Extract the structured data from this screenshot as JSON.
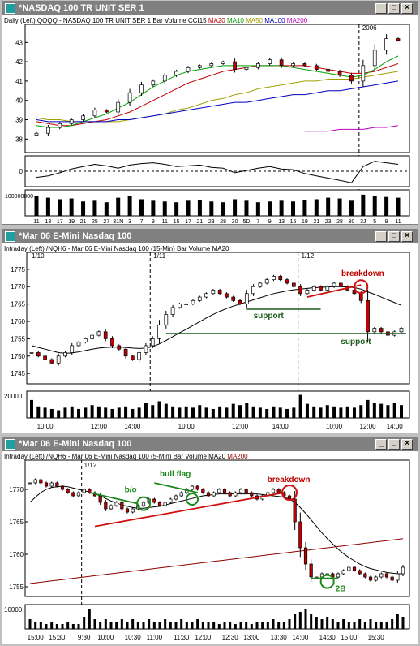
{
  "windows": [
    {
      "title": "*NASDAQ 100 TR UNIT SER 1",
      "header": {
        "interval": "Daily",
        "scale": "(Left)",
        "symbol": "QQQQ - NASDAQ 100 TR UNIT SER 1",
        "mode": "Bar",
        "studies": [
          {
            "label": "Volume",
            "color": "#000000"
          },
          {
            "label": "CCI15",
            "color": "#000000"
          },
          {
            "label": "MA20",
            "color": "#c00000"
          },
          {
            "label": "MA10",
            "color": "#00a000"
          },
          {
            "label": "MA50",
            "color": "#a0a000"
          },
          {
            "label": "MA100",
            "color": "#0000c0"
          },
          {
            "label": "MA200",
            "color": "#c000c0"
          }
        ]
      },
      "year_marker": "2006",
      "y_ticks": [
        "43",
        "42",
        "41",
        "40",
        "39",
        "38"
      ],
      "cci_tick": "0",
      "volume_tick": "100000000",
      "x_ticks": [
        "11",
        "13",
        "17",
        "19",
        "21",
        "25",
        "27",
        "31N",
        "3",
        "7",
        "9",
        "11",
        "15",
        "17",
        "21",
        "23",
        "28",
        "30",
        "5D",
        "7",
        "9",
        "13",
        "15",
        "19",
        "21",
        "23",
        "28",
        "30",
        "3J",
        "5",
        "9",
        "11"
      ]
    },
    {
      "title": "*Mar 06  E-Mini Nasdaq 100",
      "header": {
        "interval": "Intraday",
        "scale": "(Left)",
        "symbol": "/NQH6 - Mar 06  E-Mini Nasdaq 100  (15-Min)",
        "mode": "Bar",
        "studies": [
          {
            "label": "Volume",
            "color": "#000000"
          },
          {
            "label": "MA20",
            "color": "#000000"
          }
        ]
      },
      "day_markers": [
        "1/10",
        "1/11",
        "1/12"
      ],
      "y_ticks": [
        "1775",
        "1770",
        "1765",
        "1760",
        "1755",
        "1750",
        "1745"
      ],
      "volume_tick": "20000",
      "x_ticks": [
        "10:00",
        "12:00",
        "14:00",
        "10:00",
        "12:00",
        "14:00",
        "10:00",
        "12:00",
        "14:00"
      ],
      "annotations": {
        "support_1": "support",
        "support_2": "support",
        "breakdown": "breakdown"
      }
    },
    {
      "title": "*Mar 06  E-Mini Nasdaq 100",
      "header": {
        "interval": "Intraday",
        "scale": "(Left)",
        "symbol": "/NQH6 - Mar 06  E-Mini Nasdaq 100  (5-Min)",
        "mode": "Bar",
        "studies": [
          {
            "label": "Volume",
            "color": "#000000"
          },
          {
            "label": "MA20",
            "color": "#000000"
          },
          {
            "label": "MA200",
            "color": "#8b0000"
          }
        ]
      },
      "day_marker": "1/12",
      "y_ticks": [
        "1770",
        "1765",
        "1760",
        "1755"
      ],
      "volume_tick": "10000",
      "x_ticks": [
        "15:00",
        "15:30",
        "9:30",
        "10:00",
        "10:30",
        "11:00",
        "11:30",
        "12:00",
        "12:30",
        "13:00",
        "13:30",
        "14:00",
        "14:30",
        "15:00",
        "15:30"
      ],
      "annotations": {
        "bo": "b/o",
        "bull_flag": "bull flag",
        "breakdown": "breakdown",
        "two_b": "2B"
      }
    }
  ],
  "chart_data": [
    {
      "type": "candlestick",
      "title": "*NASDAQ 100 TR UNIT SER 1",
      "ylim": [
        37.3,
        43.6
      ],
      "x": [
        "11",
        "13",
        "17",
        "19",
        "21",
        "25",
        "27",
        "31N",
        "3",
        "7",
        "9",
        "11",
        "15",
        "17",
        "21",
        "23",
        "28",
        "30",
        "5D",
        "7",
        "9",
        "13",
        "15",
        "19",
        "21",
        "23",
        "28",
        "30",
        "3J",
        "5",
        "9",
        "11"
      ],
      "close": [
        38.3,
        38.6,
        38.8,
        39.0,
        39.2,
        39.5,
        39.4,
        39.9,
        40.4,
        40.8,
        41.0,
        41.3,
        41.5,
        41.7,
        41.8,
        41.9,
        42.0,
        41.6,
        41.7,
        41.9,
        42.1,
        41.8,
        41.9,
        41.8,
        41.6,
        41.5,
        41.3,
        41.0,
        41.8,
        42.6,
        43.2,
        43.1
      ],
      "series": [
        {
          "name": "MA20",
          "color": "#c00000",
          "values": [
            38.9,
            38.8,
            38.7,
            38.7,
            38.8,
            38.9,
            39.0,
            39.2,
            39.4,
            39.7,
            40.0,
            40.3,
            40.6,
            40.9,
            41.1,
            41.3,
            41.5,
            41.6,
            41.7,
            41.8,
            41.8,
            41.8,
            41.8,
            41.8,
            41.7,
            41.6,
            41.5,
            41.4,
            41.4,
            41.5,
            41.7,
            41.9
          ]
        },
        {
          "name": "MA10",
          "color": "#00a000",
          "values": [
            38.7,
            38.6,
            38.6,
            38.7,
            38.9,
            39.1,
            39.3,
            39.6,
            39.9,
            40.3,
            40.7,
            41.0,
            41.3,
            41.5,
            41.6,
            41.7,
            41.8,
            41.8,
            41.8,
            41.8,
            41.8,
            41.8,
            41.7,
            41.6,
            41.5,
            41.4,
            41.3,
            41.2,
            41.3,
            41.6,
            42.0,
            42.3
          ]
        },
        {
          "name": "MA50",
          "color": "#a0a000",
          "values": [
            39.1,
            39.0,
            39.0,
            38.9,
            38.9,
            38.9,
            38.9,
            38.9,
            39.0,
            39.1,
            39.2,
            39.3,
            39.5,
            39.6,
            39.8,
            40.0,
            40.1,
            40.3,
            40.4,
            40.6,
            40.7,
            40.8,
            40.9,
            41.0,
            41.0,
            41.1,
            41.1,
            41.1,
            41.2,
            41.3,
            41.4,
            41.5
          ]
        },
        {
          "name": "MA100",
          "color": "#0000c0",
          "values": [
            39.0,
            38.9,
            38.9,
            38.9,
            38.9,
            38.9,
            38.9,
            39.0,
            39.0,
            39.1,
            39.2,
            39.3,
            39.4,
            39.5,
            39.6,
            39.7,
            39.8,
            39.9,
            39.9,
            40.0,
            40.1,
            40.2,
            40.3,
            40.3,
            40.4,
            40.5,
            40.5,
            40.6,
            40.7,
            40.8,
            40.9,
            41.0
          ]
        },
        {
          "name": "MA200",
          "color": "#c000c0",
          "values": [
            null,
            null,
            null,
            null,
            null,
            null,
            null,
            null,
            null,
            null,
            null,
            null,
            null,
            null,
            null,
            null,
            null,
            null,
            null,
            null,
            null,
            null,
            null,
            38.4,
            38.4,
            38.4,
            38.5,
            38.5,
            38.5,
            38.6,
            38.6,
            38.7
          ]
        }
      ],
      "cci": [
        -80,
        -60,
        -20,
        30,
        60,
        90,
        70,
        40,
        80,
        100,
        110,
        90,
        60,
        70,
        80,
        50,
        40,
        -20,
        10,
        40,
        60,
        30,
        20,
        -30,
        -60,
        -90,
        -120,
        -150,
        60,
        130,
        110,
        90
      ],
      "volume": [
        130,
        120,
        110,
        115,
        95,
        100,
        90,
        120,
        130,
        110,
        100,
        95,
        90,
        100,
        105,
        95,
        90,
        110,
        100,
        90,
        95,
        100,
        95,
        105,
        110,
        120,
        115,
        100,
        140,
        130,
        125,
        120
      ]
    },
    {
      "type": "candlestick",
      "title": "/NQH6 - Mar 06  E-Mini Nasdaq 100  (15-Min)",
      "ylim": [
        1742,
        1778
      ],
      "x_labels": [
        "10:00",
        "12:00",
        "14:00",
        "10:00",
        "12:00",
        "14:00",
        "10:00",
        "12:00",
        "14:00"
      ],
      "close": [
        1751,
        1750,
        1749,
        1748,
        1750,
        1751,
        1753,
        1754,
        1755,
        1756,
        1757,
        1755,
        1753,
        1752,
        1750,
        1749,
        1751,
        1753,
        1755,
        1759,
        1762,
        1764,
        1765,
        1765,
        1766,
        1767,
        1768,
        1769,
        1768,
        1767,
        1766,
        1765,
        1768,
        1770,
        1771,
        1772,
        1773,
        1772,
        1771,
        1770,
        1768,
        1769,
        1770,
        1769,
        1770,
        1771,
        1770,
        1769,
        1768,
        1766,
        1757,
        1758,
        1757,
        1756,
        1757,
        1758
      ],
      "series": [
        {
          "name": "MA20",
          "color": "#000000",
          "values": [
            1753,
            1752.5,
            1752,
            1751.5,
            1751,
            1750.8,
            1750.9,
            1751.2,
            1751.6,
            1752,
            1752.3,
            1752.5,
            1752.6,
            1752.6,
            1752.5,
            1752.3,
            1752.2,
            1752.3,
            1752.7,
            1753.5,
            1754.5,
            1755.6,
            1756.7,
            1757.7,
            1758.8,
            1759.9,
            1761,
            1762,
            1762.9,
            1763.7,
            1764.4,
            1765,
            1765.6,
            1766.2,
            1766.8,
            1767.4,
            1768,
            1768.4,
            1768.8,
            1769.1,
            1769.3,
            1769.5,
            1769.7,
            1769.8,
            1769.9,
            1770,
            1770,
            1769.9,
            1769.7,
            1769.3,
            1768.5,
            1767.8,
            1767,
            1766.2,
            1765.4,
            1764.6
          ]
        }
      ],
      "volume": [
        14,
        9,
        8,
        7,
        6,
        8,
        9,
        7,
        8,
        10,
        9,
        8,
        7,
        8,
        9,
        7,
        8,
        12,
        10,
        13,
        11,
        9,
        8,
        9,
        8,
        10,
        8,
        7,
        9,
        8,
        11,
        10,
        12,
        9,
        8,
        7,
        9,
        8,
        7,
        8,
        18,
        11,
        9,
        8,
        10,
        9,
        8,
        9,
        8,
        10,
        14,
        12,
        11,
        10,
        12,
        10
      ]
    },
    {
      "type": "candlestick",
      "title": "/NQH6 - Mar 06  E-Mini Nasdaq 100  (5-Min)",
      "ylim": [
        1753.5,
        1773.5
      ],
      "x_labels": [
        "15:00",
        "15:30",
        "9:30",
        "10:00",
        "10:30",
        "11:00",
        "11:30",
        "12:00",
        "12:30",
        "13:00",
        "13:30",
        "14:00",
        "14:30",
        "15:00",
        "15:30"
      ],
      "close": [
        1771,
        1771.5,
        1771,
        1770.5,
        1771,
        1770.5,
        1770,
        1769.5,
        1769,
        1769.5,
        1770,
        1769.5,
        1769,
        1768,
        1767,
        1767.5,
        1768,
        1767,
        1766.5,
        1767,
        1767.5,
        1768,
        1768.5,
        1768,
        1767.5,
        1768,
        1768.5,
        1769,
        1769.5,
        1770,
        1770.5,
        1770,
        1769.5,
        1769,
        1769.5,
        1770,
        1769.5,
        1769,
        1769.5,
        1770,
        1769.5,
        1769,
        1768.5,
        1769,
        1769.5,
        1770,
        1769.5,
        1769,
        1768.5,
        1765,
        1761,
        1758.5,
        1756.5,
        1756.5,
        1757,
        1757,
        1756.5,
        1757,
        1757.5,
        1758,
        1757.5,
        1757,
        1756.5,
        1756,
        1756.5,
        1757,
        1756.5,
        1756,
        1757,
        1758
      ],
      "series": [
        {
          "name": "MA20",
          "color": "#000000",
          "values": [
            1768,
            1768.8,
            1769.5,
            1770,
            1770.3,
            1770.4,
            1770.5,
            1770.4,
            1770.2,
            1770,
            1769.8,
            1769.6,
            1769.3,
            1769,
            1768.6,
            1768.2,
            1767.9,
            1767.6,
            1767.4,
            1767.2,
            1767.1,
            1767.1,
            1767.2,
            1767.3,
            1767.4,
            1767.6,
            1767.8,
            1768,
            1768.2,
            1768.4,
            1768.6,
            1768.8,
            1769,
            1769.1,
            1769.2,
            1769.3,
            1769.3,
            1769.3,
            1769.3,
            1769.3,
            1769.3,
            1769.3,
            1769.3,
            1769.2,
            1769.1,
            1769,
            1768.9,
            1768.8,
            1768.5,
            1768,
            1767.2,
            1766.3,
            1765.3,
            1764.3,
            1763.3,
            1762.4,
            1761.6,
            1760.8,
            1760.1,
            1759.5,
            1759,
            1758.5,
            1758.1,
            1757.8,
            1757.6,
            1757.4,
            1757.2,
            1757.1,
            1757,
            1757
          ]
        },
        {
          "name": "MA200",
          "color": "#8b0000",
          "values": [
            1755.5,
            1755.6,
            1755.7,
            1755.8,
            1755.9,
            1756,
            1756.1,
            1756.2,
            1756.3,
            1756.4,
            1756.5,
            1756.6,
            1756.7,
            1756.8,
            1756.9,
            1757,
            1757.1,
            1757.2,
            1757.3,
            1757.4,
            1757.5,
            1757.6,
            1757.7,
            1757.8,
            1757.9,
            1758,
            1758.1,
            1758.2,
            1758.3,
            1758.4,
            1758.5,
            1758.6,
            1758.7,
            1758.8,
            1758.9,
            1759,
            1759.1,
            1759.2,
            1759.3,
            1759.4,
            1759.5,
            1759.6,
            1759.7,
            1759.8,
            1759.9,
            1760,
            1760.1,
            1760.2,
            1760.3,
            1760.4,
            1760.5,
            1760.6,
            1760.7,
            1760.8,
            1760.9,
            1761,
            1761.1,
            1761.2,
            1761.3,
            1761.4,
            1761.5,
            1761.6,
            1761.7,
            1761.8,
            1761.9,
            1762,
            1762.1,
            1762.2,
            1762.3,
            1762.4
          ]
        }
      ],
      "volume": [
        4,
        3,
        3,
        2,
        3,
        2,
        2,
        3,
        2,
        2,
        5,
        8,
        4,
        3,
        4,
        3,
        3,
        4,
        3,
        4,
        3,
        3,
        4,
        3,
        3,
        4,
        3,
        3,
        4,
        3,
        3,
        4,
        3,
        3,
        3,
        2,
        3,
        3,
        2,
        3,
        3,
        2,
        3,
        3,
        3,
        4,
        3,
        3,
        4,
        6,
        7,
        8,
        6,
        5,
        4,
        5,
        4,
        3,
        4,
        3,
        3,
        4,
        3,
        4,
        3,
        3,
        3,
        4,
        6,
        5
      ]
    }
  ]
}
